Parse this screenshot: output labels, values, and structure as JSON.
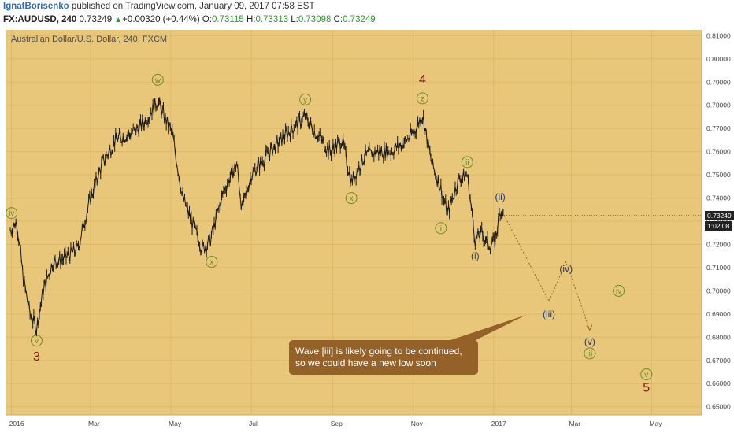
{
  "header": {
    "author": "IgnatBorisenko",
    "published_text": "published on TradingView.com, January 09, 2017 07:58 EST",
    "symbol": "FX:AUDUSD, 240",
    "last": "0.73249",
    "change_arrow": "▲",
    "change": "+0.00320 (+0.44%)",
    "o_label": "O:",
    "o_value": "0.73115",
    "h_label": "H:",
    "h_value": "0.73313",
    "l_label": "L:",
    "l_value": "0.73098",
    "c_label": "C:",
    "c_value": "0.73249"
  },
  "colors": {
    "background": "#e9c77a",
    "grid": "#dcb86a",
    "candles": "#1a1a1a",
    "wave_green": "#6d8a2e",
    "wave_blue": "#1f3d7a",
    "wave_major": "#7a1a0e",
    "callout_bg": "#946128",
    "badge_bg": "#222222"
  },
  "chart_data": {
    "type": "line",
    "title": "Australian Dollar/U.S. Dollar, 240, FXCM",
    "xlabel": "",
    "ylabel": "",
    "x_ticks": [
      "2016",
      "Mar",
      "May",
      "Jul",
      "Sep",
      "Nov",
      "2017",
      "Mar",
      "May"
    ],
    "y_ticks": [
      "0.81000",
      "0.80000",
      "0.79000",
      "0.78000",
      "0.77000",
      "0.76000",
      "0.75000",
      "0.74000",
      "0.73000",
      "0.72000",
      "0.71000",
      "0.70000",
      "0.69000",
      "0.68000",
      "0.67000",
      "0.66000",
      "0.65000"
    ],
    "ylim": [
      0.6465,
      0.8125
    ],
    "grid": true,
    "price_series": {
      "name": "AUDUSD",
      "x": [
        "2015-12-31",
        "2016-01-05",
        "2016-01-10",
        "2016-01-15",
        "2016-01-20",
        "2016-01-25",
        "2016-02-01",
        "2016-02-10",
        "2016-02-20",
        "2016-03-01",
        "2016-03-10",
        "2016-03-20",
        "2016-04-01",
        "2016-04-10",
        "2016-04-21",
        "2016-04-26",
        "2016-05-02",
        "2016-05-10",
        "2016-05-20",
        "2016-05-25",
        "2016-05-31",
        "2016-06-10",
        "2016-06-20",
        "2016-06-24",
        "2016-07-01",
        "2016-07-15",
        "2016-08-01",
        "2016-08-11",
        "2016-08-20",
        "2016-08-30",
        "2016-09-08",
        "2016-09-15",
        "2016-09-25",
        "2016-10-05",
        "2016-10-15",
        "2016-10-25",
        "2016-11-01",
        "2016-11-08",
        "2016-11-15",
        "2016-11-22",
        "2016-11-27",
        "2016-12-05",
        "2016-12-12",
        "2016-12-18",
        "2016-12-23",
        "2016-12-28",
        "2017-01-02",
        "2017-01-06",
        "2017-01-09"
      ],
      "y": [
        0.726,
        0.73,
        0.705,
        0.69,
        0.684,
        0.7,
        0.712,
        0.714,
        0.718,
        0.74,
        0.755,
        0.765,
        0.768,
        0.772,
        0.782,
        0.775,
        0.768,
        0.74,
        0.725,
        0.718,
        0.722,
        0.743,
        0.755,
        0.735,
        0.75,
        0.76,
        0.77,
        0.775,
        0.767,
        0.76,
        0.765,
        0.747,
        0.758,
        0.76,
        0.76,
        0.764,
        0.768,
        0.776,
        0.755,
        0.744,
        0.733,
        0.748,
        0.75,
        0.722,
        0.725,
        0.72,
        0.721,
        0.735,
        0.7325
      ]
    },
    "projection": {
      "x": [
        "2017-01-09",
        "2017-02-12",
        "2017-02-25",
        "2017-03-15"
      ],
      "y": [
        0.7325,
        0.6955,
        0.7125,
        0.683
      ]
    },
    "wave_labels": [
      {
        "text": "iv",
        "x": "2016-01-01",
        "y": 0.7335,
        "style": "green-circle"
      },
      {
        "text": "v",
        "x": "2016-01-20",
        "y": 0.6785,
        "style": "green-circle"
      },
      {
        "text": "3",
        "x": "2016-01-20",
        "y": 0.672,
        "style": "major"
      },
      {
        "text": "w",
        "x": "2016-04-21",
        "y": 0.791,
        "style": "green-circle"
      },
      {
        "text": "x",
        "x": "2016-06-01",
        "y": 0.7125,
        "style": "green-circle"
      },
      {
        "text": "y",
        "x": "2016-08-11",
        "y": 0.7825,
        "style": "green-circle"
      },
      {
        "text": "x",
        "x": "2016-09-15",
        "y": 0.74,
        "style": "green-circle"
      },
      {
        "text": "4",
        "x": "2016-11-08",
        "y": 0.7915,
        "style": "major"
      },
      {
        "text": "z",
        "x": "2016-11-08",
        "y": 0.783,
        "style": "green-circle"
      },
      {
        "text": "i",
        "x": "2016-11-22",
        "y": 0.727,
        "style": "green-circle"
      },
      {
        "text": "ii",
        "x": "2016-12-12",
        "y": 0.7555,
        "style": "green-circle"
      },
      {
        "text": "(i)",
        "x": "2016-12-18",
        "y": 0.715,
        "style": "blue"
      },
      {
        "text": "(ii)",
        "x": "2017-01-06",
        "y": 0.7405,
        "style": "blue"
      },
      {
        "text": "(iii)",
        "x": "2017-02-12",
        "y": 0.69,
        "style": "blue"
      },
      {
        "text": "(iv)",
        "x": "2017-02-25",
        "y": 0.7095,
        "style": "blue"
      },
      {
        "text": "(v)",
        "x": "2017-03-15",
        "y": 0.678,
        "style": "blue"
      },
      {
        "text": "iii",
        "x": "2017-03-15",
        "y": 0.673,
        "style": "green-circle"
      },
      {
        "text": "iv",
        "x": "2017-04-06",
        "y": 0.7,
        "style": "green-circle"
      },
      {
        "text": "v",
        "x": "2017-04-27",
        "y": 0.664,
        "style": "green-circle"
      },
      {
        "text": "5",
        "x": "2017-04-27",
        "y": 0.6585,
        "style": "major"
      }
    ],
    "current_price": {
      "value": "0.73249",
      "countdown": "1:02:08"
    },
    "annotation": [
      "Wave [iii] is likely going to be continued,",
      "so we could have a new low soon"
    ]
  }
}
